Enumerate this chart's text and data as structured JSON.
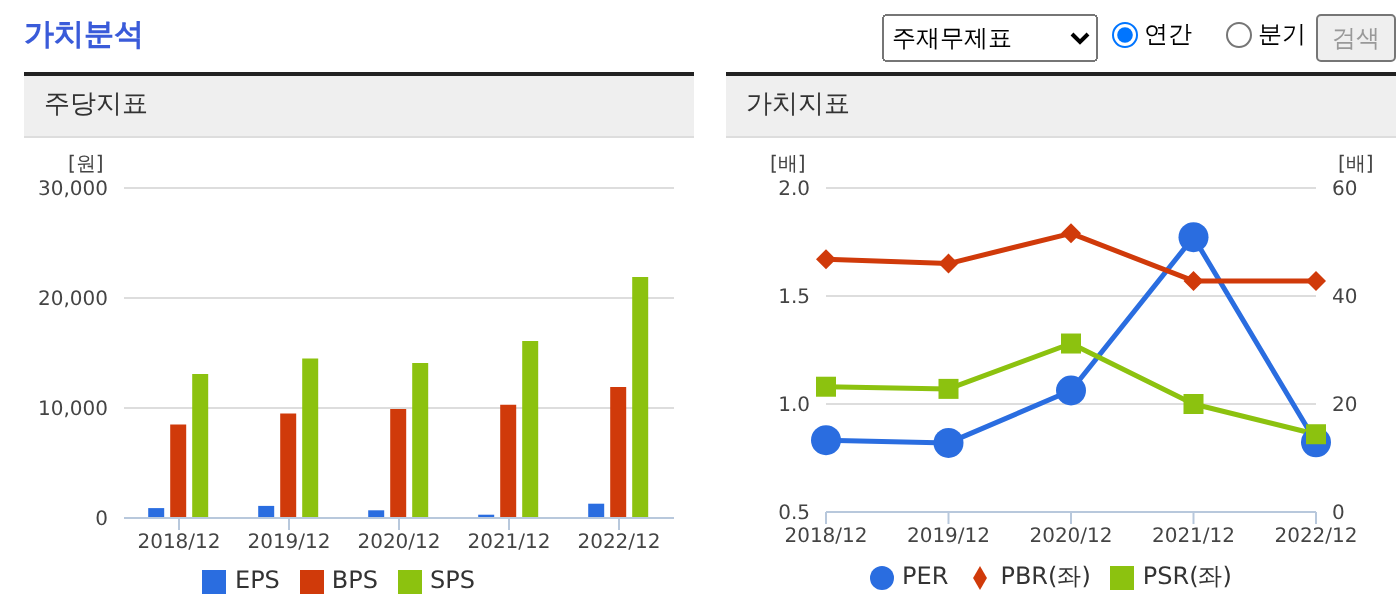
{
  "chart_data": [
    {
      "type": "bar",
      "title": "주당지표",
      "ylabel": "[원]",
      "annotations": [
        "가치분석",
        "주재무제표",
        "연간",
        "분기",
        "검색"
      ],
      "categories": [
        "2018/12",
        "2019/12",
        "2020/12",
        "2021/12",
        "2022/12"
      ],
      "series": [
        {
          "name": "EPS",
          "color": "#2a6de0",
          "values": [
            900,
            1100,
            700,
            300,
            1300
          ]
        },
        {
          "name": "BPS",
          "color": "#d03a0a",
          "values": [
            8500,
            9500,
            9900,
            10300,
            11900
          ]
        },
        {
          "name": "SPS",
          "color": "#8cc20f",
          "values": [
            13100,
            14500,
            14100,
            16100,
            21900
          ]
        }
      ],
      "ylim": [
        0,
        30000
      ],
      "yticks": [
        0,
        {
          "value": 10000,
          "label": "10,000"
        },
        {
          "value": 20000,
          "label": "20,000"
        },
        {
          "value": 30000,
          "label": "30,000"
        }
      ],
      "grid": "y",
      "legend": "bottom"
    },
    {
      "type": "line",
      "title": "가치지표",
      "ylabel": "[배]",
      "y2label": "[배]",
      "categories": [
        "2018/12",
        "2019/12",
        "2020/12",
        "2021/12",
        "2022/12"
      ],
      "series": [
        {
          "name": "PER",
          "color": "#2a6de0",
          "axis": "y2",
          "marker": "circle",
          "values": [
            13.3,
            12.8,
            22.5,
            50.9,
            12.9
          ]
        },
        {
          "name": "PBR(좌)",
          "color": "#d03a0a",
          "marker": "diamond",
          "values": [
            1.67,
            1.65,
            1.79,
            1.57,
            1.57
          ]
        },
        {
          "name": "PSR(좌)",
          "color": "#8cc20f",
          "marker": "square",
          "values": [
            1.08,
            1.07,
            1.28,
            1.0,
            0.86
          ]
        }
      ],
      "ylim": [
        0.5,
        2
      ],
      "yticks": [
        0.5,
        {
          "value": 1,
          "label": "1.0"
        },
        1.5,
        {
          "value": 2,
          "label": "2.0"
        }
      ],
      "y2lim": [
        0,
        60
      ],
      "y2ticks": [
        0,
        20,
        40,
        60
      ],
      "grid": "y",
      "legend": "bottom"
    }
  ]
}
